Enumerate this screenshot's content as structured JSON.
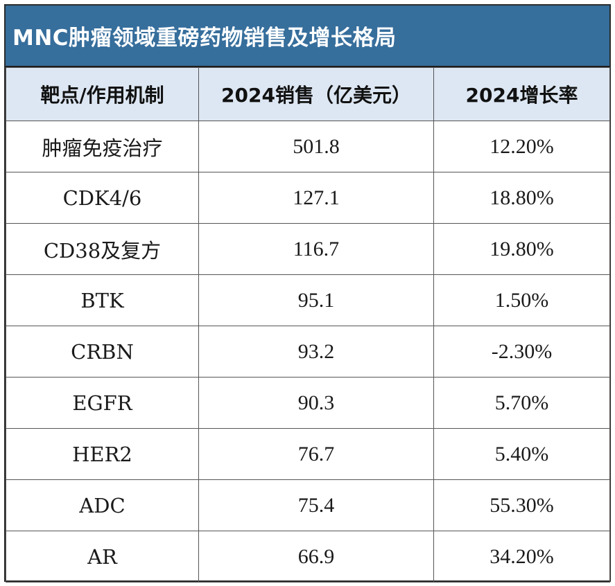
{
  "title": "MNC肿瘤领域重磅药物销售及增长格局",
  "table": {
    "headers": [
      "靶点/作用机制",
      "2024销售（亿美元）",
      "2024增长率"
    ],
    "rows": [
      {
        "target": "肿瘤免疫治疗",
        "sales": "501.8",
        "growth": "12.20%"
      },
      {
        "target": "CDK4/6",
        "sales": "127.1",
        "growth": "18.80%"
      },
      {
        "target": "CD38及复方",
        "sales": "116.7",
        "growth": "19.80%"
      },
      {
        "target": "BTK",
        "sales": "95.1",
        "growth": "1.50%"
      },
      {
        "target": "CRBN",
        "sales": "93.2",
        "growth": "-2.30%"
      },
      {
        "target": "EGFR",
        "sales": "90.3",
        "growth": "5.70%"
      },
      {
        "target": "HER2",
        "sales": "76.7",
        "growth": "5.40%"
      },
      {
        "target": "ADC",
        "sales": "75.4",
        "growth": "55.30%"
      },
      {
        "target": "AR",
        "sales": "66.9",
        "growth": "34.20%"
      }
    ]
  },
  "colors": {
    "title_background": "#366e9c",
    "header_background": "#dde7f3"
  }
}
